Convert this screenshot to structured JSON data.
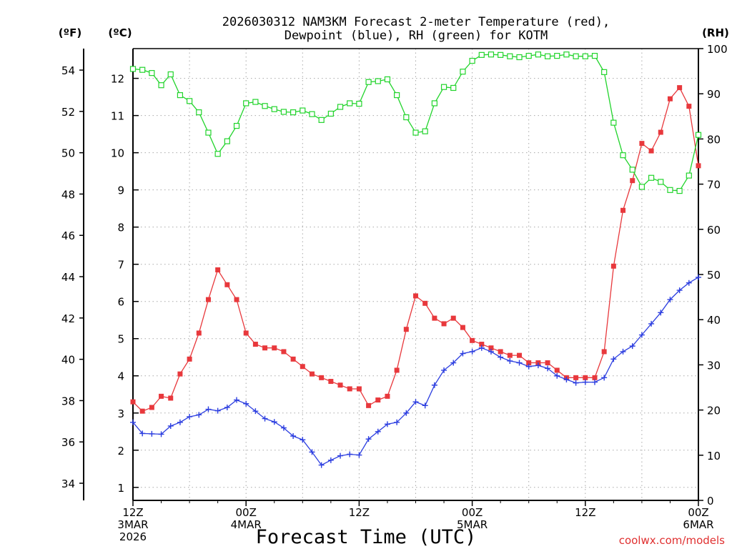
{
  "chart_data": {
    "type": "line",
    "title_line1": "2026030312 NAM3KM Forecast 2-meter Temperature (red),",
    "title_line2": "Dewpoint (blue), RH (green) for KOTM",
    "xlabel": "Forecast Time (UTC)",
    "credit": "coolwx.com/models",
    "axis_f_label": "(ºF)",
    "axis_c_label": "(ºC)",
    "axis_rh_label": "(RH)",
    "x_hours_range": [
      0,
      60
    ],
    "celsius_range": [
      0.65,
      12.8
    ],
    "rh_range": [
      0,
      100
    ],
    "fahrenheit_ticks": [
      {
        "v": 34,
        "label": "34"
      },
      {
        "v": 36,
        "label": "36"
      },
      {
        "v": 38,
        "label": "38"
      },
      {
        "v": 40,
        "label": "40"
      },
      {
        "v": 42,
        "label": "42"
      },
      {
        "v": 44,
        "label": "44"
      },
      {
        "v": 46,
        "label": "46"
      },
      {
        "v": 48,
        "label": "48"
      },
      {
        "v": 50,
        "label": "50"
      },
      {
        "v": 52,
        "label": "52"
      },
      {
        "v": 54,
        "label": "54"
      }
    ],
    "celsius_ticks": [
      {
        "v": 1,
        "label": "1"
      },
      {
        "v": 2,
        "label": "2"
      },
      {
        "v": 3,
        "label": "3"
      },
      {
        "v": 4,
        "label": "4"
      },
      {
        "v": 5,
        "label": "5"
      },
      {
        "v": 6,
        "label": "6"
      },
      {
        "v": 7,
        "label": "7"
      },
      {
        "v": 8,
        "label": "8"
      },
      {
        "v": 9,
        "label": "9"
      },
      {
        "v": 10,
        "label": "10"
      },
      {
        "v": 11,
        "label": "11"
      },
      {
        "v": 12,
        "label": "12"
      }
    ],
    "rh_ticks": [
      {
        "v": 0,
        "label": "0"
      },
      {
        "v": 10,
        "label": "10"
      },
      {
        "v": 20,
        "label": "20"
      },
      {
        "v": 30,
        "label": "30"
      },
      {
        "v": 40,
        "label": "40"
      },
      {
        "v": 50,
        "label": "50"
      },
      {
        "v": 60,
        "label": "60"
      },
      {
        "v": 70,
        "label": "70"
      },
      {
        "v": 80,
        "label": "80"
      },
      {
        "v": 90,
        "label": "90"
      },
      {
        "v": 100,
        "label": "100"
      }
    ],
    "x_ticks": [
      {
        "hour": 0,
        "lines": [
          "12Z",
          "3MAR",
          "2026"
        ]
      },
      {
        "hour": 12,
        "lines": [
          "00Z",
          "4MAR"
        ]
      },
      {
        "hour": 24,
        "lines": [
          "12Z"
        ]
      },
      {
        "hour": 36,
        "lines": [
          "00Z",
          "5MAR"
        ]
      },
      {
        "hour": 48,
        "lines": [
          "12Z"
        ]
      },
      {
        "hour": 60,
        "lines": [
          "00Z",
          "6MAR"
        ]
      }
    ],
    "series": [
      {
        "name": "Temperature",
        "color": "#e8383c",
        "marker": "filled-square",
        "axis": "celsius",
        "hours_step": 1,
        "values": [
          3.3,
          3.05,
          3.15,
          3.45,
          3.4,
          4.05,
          4.45,
          5.15,
          6.05,
          6.85,
          6.45,
          6.05,
          5.15,
          4.85,
          4.75,
          4.75,
          4.65,
          4.45,
          4.25,
          4.05,
          3.95,
          3.85,
          3.75,
          3.65,
          3.65,
          3.2,
          3.35,
          3.45,
          4.15,
          5.25,
          6.15,
          5.95,
          5.55,
          5.4,
          5.55,
          5.3,
          4.95,
          4.85,
          4.75,
          4.65,
          4.55,
          4.55,
          4.35,
          4.35,
          4.35,
          4.15,
          3.95,
          3.95,
          3.95,
          3.95,
          4.65,
          6.95,
          8.45,
          9.25,
          10.25,
          10.05,
          10.55,
          11.45,
          11.75,
          11.25,
          9.65
        ]
      },
      {
        "name": "Dewpoint",
        "color": "#2c3ee0",
        "marker": "plus",
        "axis": "celsius",
        "hours_step": 1,
        "values": [
          2.75,
          2.45,
          2.44,
          2.43,
          2.65,
          2.75,
          2.9,
          2.95,
          3.1,
          3.06,
          3.15,
          3.35,
          3.25,
          3.05,
          2.85,
          2.76,
          2.6,
          2.38,
          2.28,
          1.95,
          1.6,
          1.73,
          1.85,
          1.89,
          1.87,
          2.3,
          2.5,
          2.7,
          2.75,
          3.0,
          3.3,
          3.2,
          3.75,
          4.15,
          4.35,
          4.6,
          4.65,
          4.75,
          4.65,
          4.5,
          4.4,
          4.35,
          4.25,
          4.28,
          4.2,
          4.0,
          3.9,
          3.81,
          3.83,
          3.83,
          3.95,
          4.45,
          4.65,
          4.8,
          5.1,
          5.4,
          5.7,
          6.05,
          6.3,
          6.5,
          6.65
        ]
      },
      {
        "name": "RH",
        "color": "#22d42c",
        "marker": "open-square",
        "axis": "rh",
        "hours_step": 1,
        "values": [
          95.5,
          95.3,
          94.6,
          91.9,
          94.3,
          89.7,
          88.4,
          85.9,
          81.4,
          76.7,
          79.5,
          82.9,
          87.9,
          88.2,
          87.3,
          86.6,
          86.0,
          85.9,
          86.3,
          85.5,
          84.2,
          85.6,
          87.1,
          87.9,
          87.8,
          92.6,
          92.8,
          93.2,
          89.7,
          84.8,
          81.4,
          81.7,
          87.9,
          91.5,
          91.3,
          94.9,
          97.3,
          98.6,
          98.7,
          98.6,
          98.3,
          98.1,
          98.4,
          98.7,
          98.3,
          98.4,
          98.7,
          98.3,
          98.3,
          98.4,
          94.8,
          83.6,
          76.4,
          73.2,
          69.4,
          71.4,
          70.5,
          68.7,
          68.5,
          71.9,
          80.9
        ]
      }
    ]
  }
}
